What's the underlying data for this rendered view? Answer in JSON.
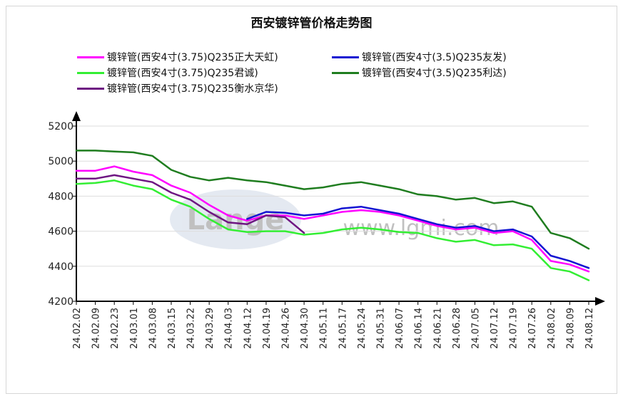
{
  "chart_data": {
    "type": "line",
    "title": "西安镀锌管价格走势图",
    "xlabel": "",
    "ylabel": "",
    "ylim": [
      4200,
      5200
    ],
    "yticks": [
      4200,
      4400,
      4600,
      4800,
      5000,
      5200
    ],
    "grid": true,
    "legend_position": "top",
    "categories": [
      "24.02.02",
      "24.02.09",
      "24.02.23",
      "24.03.01",
      "24.03.08",
      "24.03.15",
      "24.03.22",
      "24.03.29",
      "24.04.03",
      "24.04.12",
      "24.04.19",
      "24.04.26",
      "24.04.30",
      "24.05.11",
      "24.05.17",
      "24.05.24",
      "24.05.31",
      "24.06.07",
      "24.06.14",
      "24.06.21",
      "24.06.28",
      "24.07.05",
      "24.07.12",
      "24.07.19",
      "24.07.26",
      "24.08.02",
      "24.08.09",
      "24.08.12"
    ],
    "series": [
      {
        "name": "镀锌管(西安4寸(3.75)Q235正大天虹)",
        "color": "#ff00ff",
        "values": [
          4945,
          4945,
          4970,
          4940,
          4920,
          4860,
          4820,
          4750,
          4690,
          4660,
          4690,
          4690,
          4670,
          4690,
          4710,
          4720,
          4710,
          4690,
          4660,
          4630,
          4610,
          4620,
          4590,
          4600,
          4550,
          4430,
          4410,
          4370
        ]
      },
      {
        "name": "镀锌管(西安4寸(3.5)Q235友发)",
        "color": "#1414d2",
        "values": [
          null,
          null,
          null,
          null,
          null,
          null,
          null,
          null,
          null,
          4670,
          4710,
          4705,
          4690,
          4700,
          4730,
          4740,
          4720,
          4700,
          4670,
          4640,
          4620,
          4630,
          4600,
          4610,
          4570,
          4460,
          4430,
          4390
        ]
      },
      {
        "name": "镀锌管(西安4寸(3.75)Q235君诚)",
        "color": "#33ee33",
        "values": [
          4870,
          4875,
          4890,
          4860,
          4840,
          4780,
          4740,
          4670,
          4610,
          4595,
          4600,
          4600,
          4580,
          4590,
          4610,
          4620,
          4610,
          4595,
          4590,
          4560,
          4540,
          4550,
          4520,
          4525,
          4500,
          4390,
          4370,
          4320
        ]
      },
      {
        "name": "镀锌管(西安4寸(3.5)Q235利达)",
        "color": "#1f7d1f",
        "values": [
          5060,
          5060,
          5055,
          5050,
          5030,
          4950,
          4910,
          4890,
          4905,
          4890,
          4880,
          4860,
          4840,
          4850,
          4870,
          4880,
          4860,
          4840,
          4810,
          4800,
          4780,
          4790,
          4760,
          4770,
          4740,
          4590,
          4560,
          4500
        ]
      },
      {
        "name": "镀锌管(西安4寸(3.75)Q235衡水京华)",
        "color": "#6e1682",
        "values": [
          4900,
          4900,
          4920,
          4900,
          4880,
          4820,
          4780,
          4710,
          4650,
          4640,
          4690,
          4680,
          4590,
          null,
          null,
          null,
          null,
          null,
          null,
          null,
          null,
          null,
          null,
          null,
          null,
          null,
          null,
          null
        ]
      }
    ]
  },
  "watermark": {
    "logo_text": "Lange",
    "url_text": "www.lgmi.com"
  }
}
